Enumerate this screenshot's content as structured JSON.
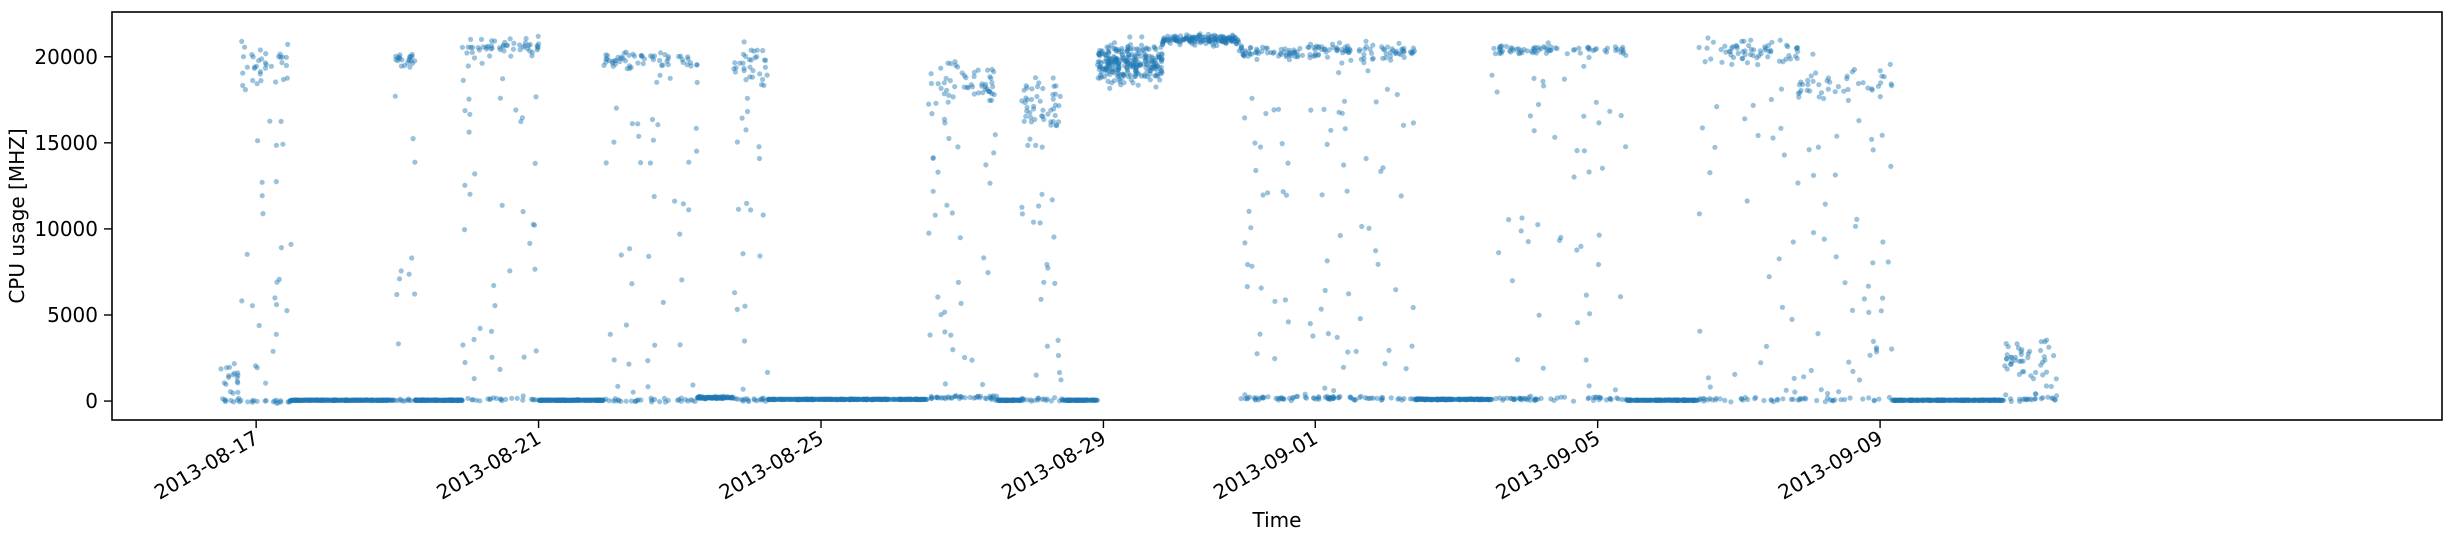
{
  "chart_data": {
    "type": "scatter",
    "title": "",
    "xlabel": "Time",
    "ylabel": "CPU usage [MHZ]",
    "xlim": [
      "2013-08-14T23:00",
      "2013-09-16T23:00"
    ],
    "ylim": [
      -1100,
      22600
    ],
    "yticks": [
      0,
      5000,
      10000,
      15000,
      20000
    ],
    "xticks": [
      "2013-08-17",
      "2013-08-21",
      "2013-08-25",
      "2013-08-29",
      "2013-09-01",
      "2013-09-05",
      "2013-09-09"
    ],
    "grid": false,
    "legend": "none",
    "marker_color": "#1f77b4",
    "marker_alpha": 0.45,
    "series": [
      {
        "segments": [
          {
            "start": "2013-08-16T12:00",
            "end": "2013-08-16T19:00",
            "idle_level": 0,
            "busy_level": 1500,
            "active_level": 20000,
            "spread": 1000,
            "density": 28
          },
          {
            "start": "2013-08-16T19:00",
            "end": "2013-08-17T12:00",
            "idle_level": 0,
            "busy_level": 19500,
            "active_level": 19500,
            "spread": 1500,
            "density": 80
          },
          {
            "start": "2013-08-17T12:00",
            "end": "2013-08-18T23:00",
            "idle_level": 50,
            "busy_level": 50,
            "active_level": 50,
            "spread": 30,
            "density": 160
          },
          {
            "start": "2013-08-18T23:00",
            "end": "2013-08-19T06:00",
            "idle_level": 50,
            "busy_level": 19800,
            "active_level": 19800,
            "spread": 400,
            "density": 40
          },
          {
            "start": "2013-08-19T06:00",
            "end": "2013-08-19T22:00",
            "idle_level": 50,
            "busy_level": 50,
            "active_level": 50,
            "spread": 30,
            "density": 120
          },
          {
            "start": "2013-08-19T22:00",
            "end": "2013-08-21T00:00",
            "idle_level": 100,
            "busy_level": 20500,
            "active_level": 20500,
            "spread": 700,
            "density": 110
          },
          {
            "start": "2013-08-21T00:00",
            "end": "2013-08-21T22:00",
            "idle_level": 50,
            "busy_level": 50,
            "active_level": 50,
            "spread": 30,
            "density": 130
          },
          {
            "start": "2013-08-21T22:00",
            "end": "2013-08-23T06:00",
            "idle_level": 50,
            "busy_level": 19800,
            "active_level": 19800,
            "spread": 600,
            "density": 130
          },
          {
            "start": "2013-08-23T06:00",
            "end": "2013-08-23T18:00",
            "idle_level": 200,
            "busy_level": 200,
            "active_level": 200,
            "spread": 120,
            "density": 60
          },
          {
            "start": "2013-08-23T18:00",
            "end": "2013-08-24T06:00",
            "idle_level": 100,
            "busy_level": 19500,
            "active_level": 19500,
            "spread": 1500,
            "density": 70
          },
          {
            "start": "2013-08-24T06:00",
            "end": "2013-08-26T12:00",
            "idle_level": 100,
            "busy_level": 100,
            "active_level": 100,
            "spread": 40,
            "density": 220
          },
          {
            "start": "2013-08-26T12:00",
            "end": "2013-08-27T12:00",
            "idle_level": 200,
            "busy_level": 18500,
            "active_level": 20500,
            "spread": 1800,
            "density": 130
          },
          {
            "start": "2013-08-27T12:00",
            "end": "2013-08-27T20:00",
            "idle_level": 50,
            "busy_level": 50,
            "active_level": 50,
            "spread": 30,
            "density": 50
          },
          {
            "start": "2013-08-27T20:00",
            "end": "2013-08-28T10:00",
            "idle_level": 100,
            "busy_level": 17500,
            "active_level": 17500,
            "spread": 2000,
            "density": 90
          },
          {
            "start": "2013-08-28T10:00",
            "end": "2013-08-28T22:00",
            "idle_level": 50,
            "busy_level": 50,
            "active_level": 50,
            "spread": 30,
            "density": 60
          },
          {
            "start": "2013-08-28T22:00",
            "end": "2013-08-29T20:00",
            "idle_level": 19600,
            "busy_level": 19600,
            "active_level": 19600,
            "spread": 1100,
            "density": 260
          },
          {
            "start": "2013-08-29T20:00",
            "end": "2013-08-30T22:00",
            "idle_level": 21000,
            "busy_level": 21000,
            "active_level": 21000,
            "spread": 300,
            "density": 150
          },
          {
            "start": "2013-08-30T22:00",
            "end": "2013-08-31T18:00",
            "idle_level": 150,
            "busy_level": 20300,
            "active_level": 20300,
            "spread": 500,
            "density": 110
          },
          {
            "start": "2013-08-31T18:00",
            "end": "2013-09-01T12:00",
            "idle_level": 200,
            "busy_level": 20400,
            "active_level": 20400,
            "spread": 500,
            "density": 100
          },
          {
            "start": "2013-09-01T12:00",
            "end": "2013-09-02T10:00",
            "idle_level": 150,
            "busy_level": 20300,
            "active_level": 20300,
            "spread": 600,
            "density": 90
          },
          {
            "start": "2013-09-02T10:00",
            "end": "2013-09-03T12:00",
            "idle_level": 100,
            "busy_level": 100,
            "active_level": 100,
            "spread": 60,
            "density": 120
          },
          {
            "start": "2013-09-03T12:00",
            "end": "2013-09-05T10:00",
            "idle_level": 150,
            "busy_level": 20400,
            "active_level": 20400,
            "spread": 400,
            "density": 170
          },
          {
            "start": "2013-09-05T10:00",
            "end": "2013-09-06T10:00",
            "idle_level": 50,
            "busy_level": 50,
            "active_level": 50,
            "spread": 30,
            "density": 110
          },
          {
            "start": "2013-09-06T10:00",
            "end": "2013-09-07T20:00",
            "idle_level": 100,
            "busy_level": 20300,
            "active_level": 20300,
            "spread": 900,
            "density": 120
          },
          {
            "start": "2013-09-07T20:00",
            "end": "2013-09-09T04:00",
            "idle_level": 100,
            "busy_level": 18500,
            "active_level": 18500,
            "spread": 1500,
            "density": 110
          },
          {
            "start": "2013-09-09T04:00",
            "end": "2013-09-10T18:00",
            "idle_level": 50,
            "busy_level": 50,
            "active_level": 50,
            "spread": 30,
            "density": 170
          },
          {
            "start": "2013-09-10T18:00",
            "end": "2013-09-11T12:00",
            "idle_level": 100,
            "busy_level": 2500,
            "active_level": 2500,
            "spread": 1500,
            "density": 70
          }
        ]
      }
    ]
  }
}
